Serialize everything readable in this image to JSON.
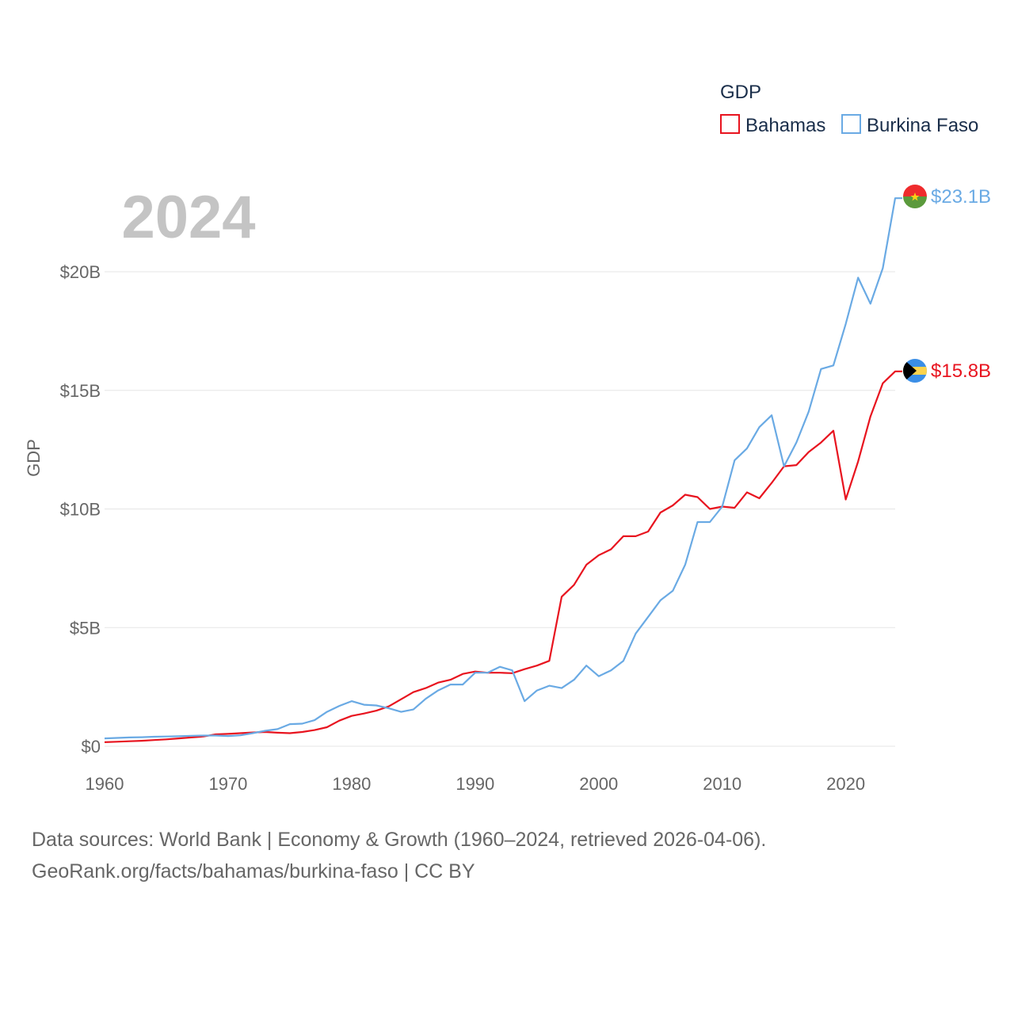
{
  "chart_data": {
    "type": "line",
    "title": "2024",
    "xlabel": "",
    "ylabel": "GDP",
    "xlim": [
      1960,
      2024
    ],
    "ylim": [
      0,
      23.1
    ],
    "x_ticks": [
      1960,
      1970,
      1980,
      1990,
      2000,
      2010,
      2020
    ],
    "y_ticks": [
      0,
      5,
      10,
      15,
      20
    ],
    "y_tick_labels": [
      "$0",
      "$5B",
      "$10B",
      "$15B",
      "$20B"
    ],
    "unit": "billion USD",
    "legend": {
      "title": "GDP",
      "position": "top-right"
    },
    "x": [
      1960,
      1961,
      1962,
      1963,
      1964,
      1965,
      1966,
      1967,
      1968,
      1969,
      1970,
      1971,
      1972,
      1973,
      1974,
      1975,
      1976,
      1977,
      1978,
      1979,
      1980,
      1981,
      1982,
      1983,
      1984,
      1985,
      1986,
      1987,
      1988,
      1989,
      1990,
      1991,
      1992,
      1993,
      1994,
      1995,
      1996,
      1997,
      1998,
      1999,
      2000,
      2001,
      2002,
      2003,
      2004,
      2005,
      2006,
      2007,
      2008,
      2009,
      2010,
      2011,
      2012,
      2013,
      2014,
      2015,
      2016,
      2017,
      2018,
      2019,
      2020,
      2021,
      2022,
      2023,
      2024
    ],
    "series": [
      {
        "name": "Bahamas",
        "color": "#e8141f",
        "end_label": "$15.8B",
        "flag": "bahamas-flag",
        "values": [
          0.17,
          0.19,
          0.21,
          0.23,
          0.26,
          0.29,
          0.33,
          0.37,
          0.41,
          0.5,
          0.52,
          0.55,
          0.58,
          0.6,
          0.57,
          0.55,
          0.6,
          0.68,
          0.8,
          1.08,
          1.28,
          1.38,
          1.5,
          1.68,
          1.98,
          2.28,
          2.45,
          2.68,
          2.8,
          3.05,
          3.15,
          3.1,
          3.1,
          3.08,
          3.25,
          3.4,
          3.6,
          6.3,
          6.8,
          7.65,
          8.05,
          8.3,
          8.85,
          8.85,
          9.05,
          9.85,
          10.15,
          10.6,
          10.5,
          10.0,
          10.1,
          10.05,
          10.7,
          10.45,
          11.1,
          11.8,
          11.85,
          12.4,
          12.8,
          13.3,
          10.4,
          12.0,
          13.9,
          15.3,
          15.8
        ]
      },
      {
        "name": "Burkina Faso",
        "color": "#6aaae4",
        "end_label": "$23.1B",
        "flag": "burkina-faso-flag",
        "values": [
          0.33,
          0.35,
          0.37,
          0.38,
          0.4,
          0.41,
          0.42,
          0.44,
          0.45,
          0.45,
          0.43,
          0.46,
          0.55,
          0.65,
          0.72,
          0.93,
          0.95,
          1.1,
          1.45,
          1.7,
          1.9,
          1.75,
          1.72,
          1.6,
          1.45,
          1.55,
          2.0,
          2.35,
          2.6,
          2.6,
          3.1,
          3.1,
          3.35,
          3.2,
          1.9,
          2.35,
          2.55,
          2.45,
          2.8,
          3.4,
          2.95,
          3.2,
          3.6,
          4.75,
          5.45,
          6.15,
          6.55,
          7.65,
          9.45,
          9.45,
          10.1,
          12.05,
          12.55,
          13.45,
          13.95,
          11.8,
          12.8,
          14.1,
          15.9,
          16.05,
          17.8,
          19.75,
          18.65,
          20.15,
          23.1
        ]
      }
    ]
  },
  "footer": {
    "line1": "Data sources: World Bank | Economy & Growth (1960–2024, retrieved 2026-04-06).",
    "line2": "GeoRank.org/facts/bahamas/burkina-faso | CC BY"
  }
}
